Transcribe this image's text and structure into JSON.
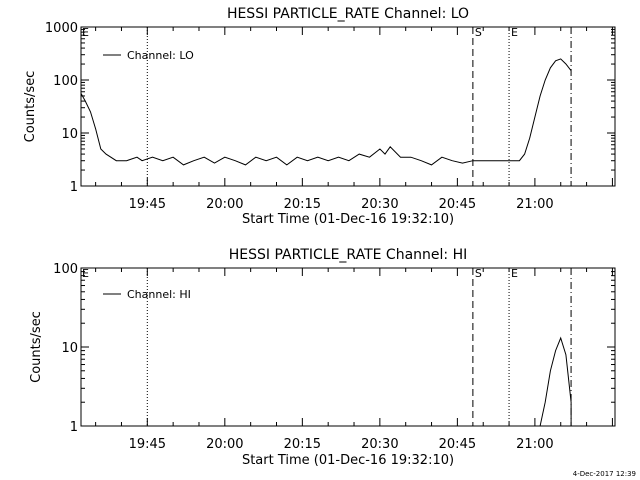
{
  "footer": {
    "timestamp": "4-Dec-2017 12:39"
  },
  "chart_data": [
    {
      "type": "line",
      "scale": "log",
      "title": "HESSI PARTICLE_RATE Channel: LO",
      "xlabel": "Start Time (01-Dec-16 19:32:10)",
      "ylabel": "Counts/sec",
      "x_ticks": [
        "19:45",
        "20:00",
        "20:15",
        "20:30",
        "20:45",
        "21:00"
      ],
      "y_ticks": [
        "1",
        "10",
        "100",
        "1000"
      ],
      "ylim": [
        1,
        1000
      ],
      "legend": "Channel: LO",
      "markers": [
        {
          "label": "",
          "time": "19:45",
          "style": "dotted"
        },
        {
          "label": "S",
          "time": "20:48",
          "style": "dashed"
        },
        {
          "label": "E",
          "time": "20:55",
          "style": "dotted"
        },
        {
          "label": "",
          "time": "21:07",
          "style": "dashdot"
        }
      ],
      "edge_labels": [
        "E"
      ],
      "series": [
        {
          "name": "Channel: LO",
          "points": [
            [
              "19:32",
              60
            ],
            [
              "19:33",
              40
            ],
            [
              "19:34",
              25
            ],
            [
              "19:35",
              12
            ],
            [
              "19:36",
              5
            ],
            [
              "19:37",
              4
            ],
            [
              "19:39",
              3
            ],
            [
              "19:41",
              3
            ],
            [
              "19:43",
              3.5
            ],
            [
              "19:44",
              3
            ],
            [
              "19:46",
              3.5
            ],
            [
              "19:48",
              3
            ],
            [
              "19:50",
              3.5
            ],
            [
              "19:52",
              2.5
            ],
            [
              "19:54",
              3
            ],
            [
              "19:56",
              3.5
            ],
            [
              "19:58",
              2.7
            ],
            [
              "20:00",
              3.5
            ],
            [
              "20:02",
              3
            ],
            [
              "20:04",
              2.5
            ],
            [
              "20:06",
              3.5
            ],
            [
              "20:08",
              3
            ],
            [
              "20:10",
              3.5
            ],
            [
              "20:12",
              2.5
            ],
            [
              "20:14",
              3.5
            ],
            [
              "20:16",
              3
            ],
            [
              "20:18",
              3.5
            ],
            [
              "20:20",
              3
            ],
            [
              "20:22",
              3.5
            ],
            [
              "20:24",
              3
            ],
            [
              "20:26",
              4
            ],
            [
              "20:28",
              3.5
            ],
            [
              "20:30",
              5
            ],
            [
              "20:31",
              4
            ],
            [
              "20:32",
              5.5
            ],
            [
              "20:34",
              3.5
            ],
            [
              "20:36",
              3.5
            ],
            [
              "20:38",
              3
            ],
            [
              "20:40",
              2.5
            ],
            [
              "20:42",
              3.5
            ],
            [
              "20:44",
              3
            ],
            [
              "20:46",
              2.7
            ],
            [
              "20:48",
              3
            ],
            [
              "20:50",
              3
            ],
            [
              "20:52",
              3
            ],
            [
              "20:54",
              3
            ],
            [
              "20:56",
              3
            ],
            [
              "20:57",
              3
            ],
            [
              "20:58",
              4
            ],
            [
              "20:59",
              8
            ],
            [
              "21:00",
              20
            ],
            [
              "21:01",
              50
            ],
            [
              "21:02",
              100
            ],
            [
              "21:03",
              170
            ],
            [
              "21:04",
              230
            ],
            [
              "21:05",
              250
            ],
            [
              "21:06",
              200
            ],
            [
              "21:07",
              150
            ]
          ]
        }
      ]
    },
    {
      "type": "line",
      "scale": "log",
      "title": "HESSI PARTICLE_RATE Channel: HI",
      "xlabel": "Start Time (01-Dec-16 19:32:10)",
      "ylabel": "Counts/sec",
      "x_ticks": [
        "19:45",
        "20:00",
        "20:15",
        "20:30",
        "20:45",
        "21:00"
      ],
      "y_ticks": [
        "1",
        "10",
        "100"
      ],
      "ylim": [
        1,
        100
      ],
      "legend": "Channel: HI",
      "markers": [
        {
          "label": "",
          "time": "19:45",
          "style": "dotted"
        },
        {
          "label": "S",
          "time": "20:48",
          "style": "dashed"
        },
        {
          "label": "E",
          "time": "20:55",
          "style": "dotted"
        },
        {
          "label": "",
          "time": "21:07",
          "style": "dashdot"
        }
      ],
      "edge_labels": [
        "E"
      ],
      "series": [
        {
          "name": "Channel: HI",
          "points": [
            [
              "21:01",
              1
            ],
            [
              "21:02",
              2
            ],
            [
              "21:03",
              5
            ],
            [
              "21:04",
              9
            ],
            [
              "21:05",
              13
            ],
            [
              "21:06",
              8
            ],
            [
              "21:07",
              2
            ],
            [
              "21:07",
              1
            ]
          ]
        }
      ]
    }
  ]
}
